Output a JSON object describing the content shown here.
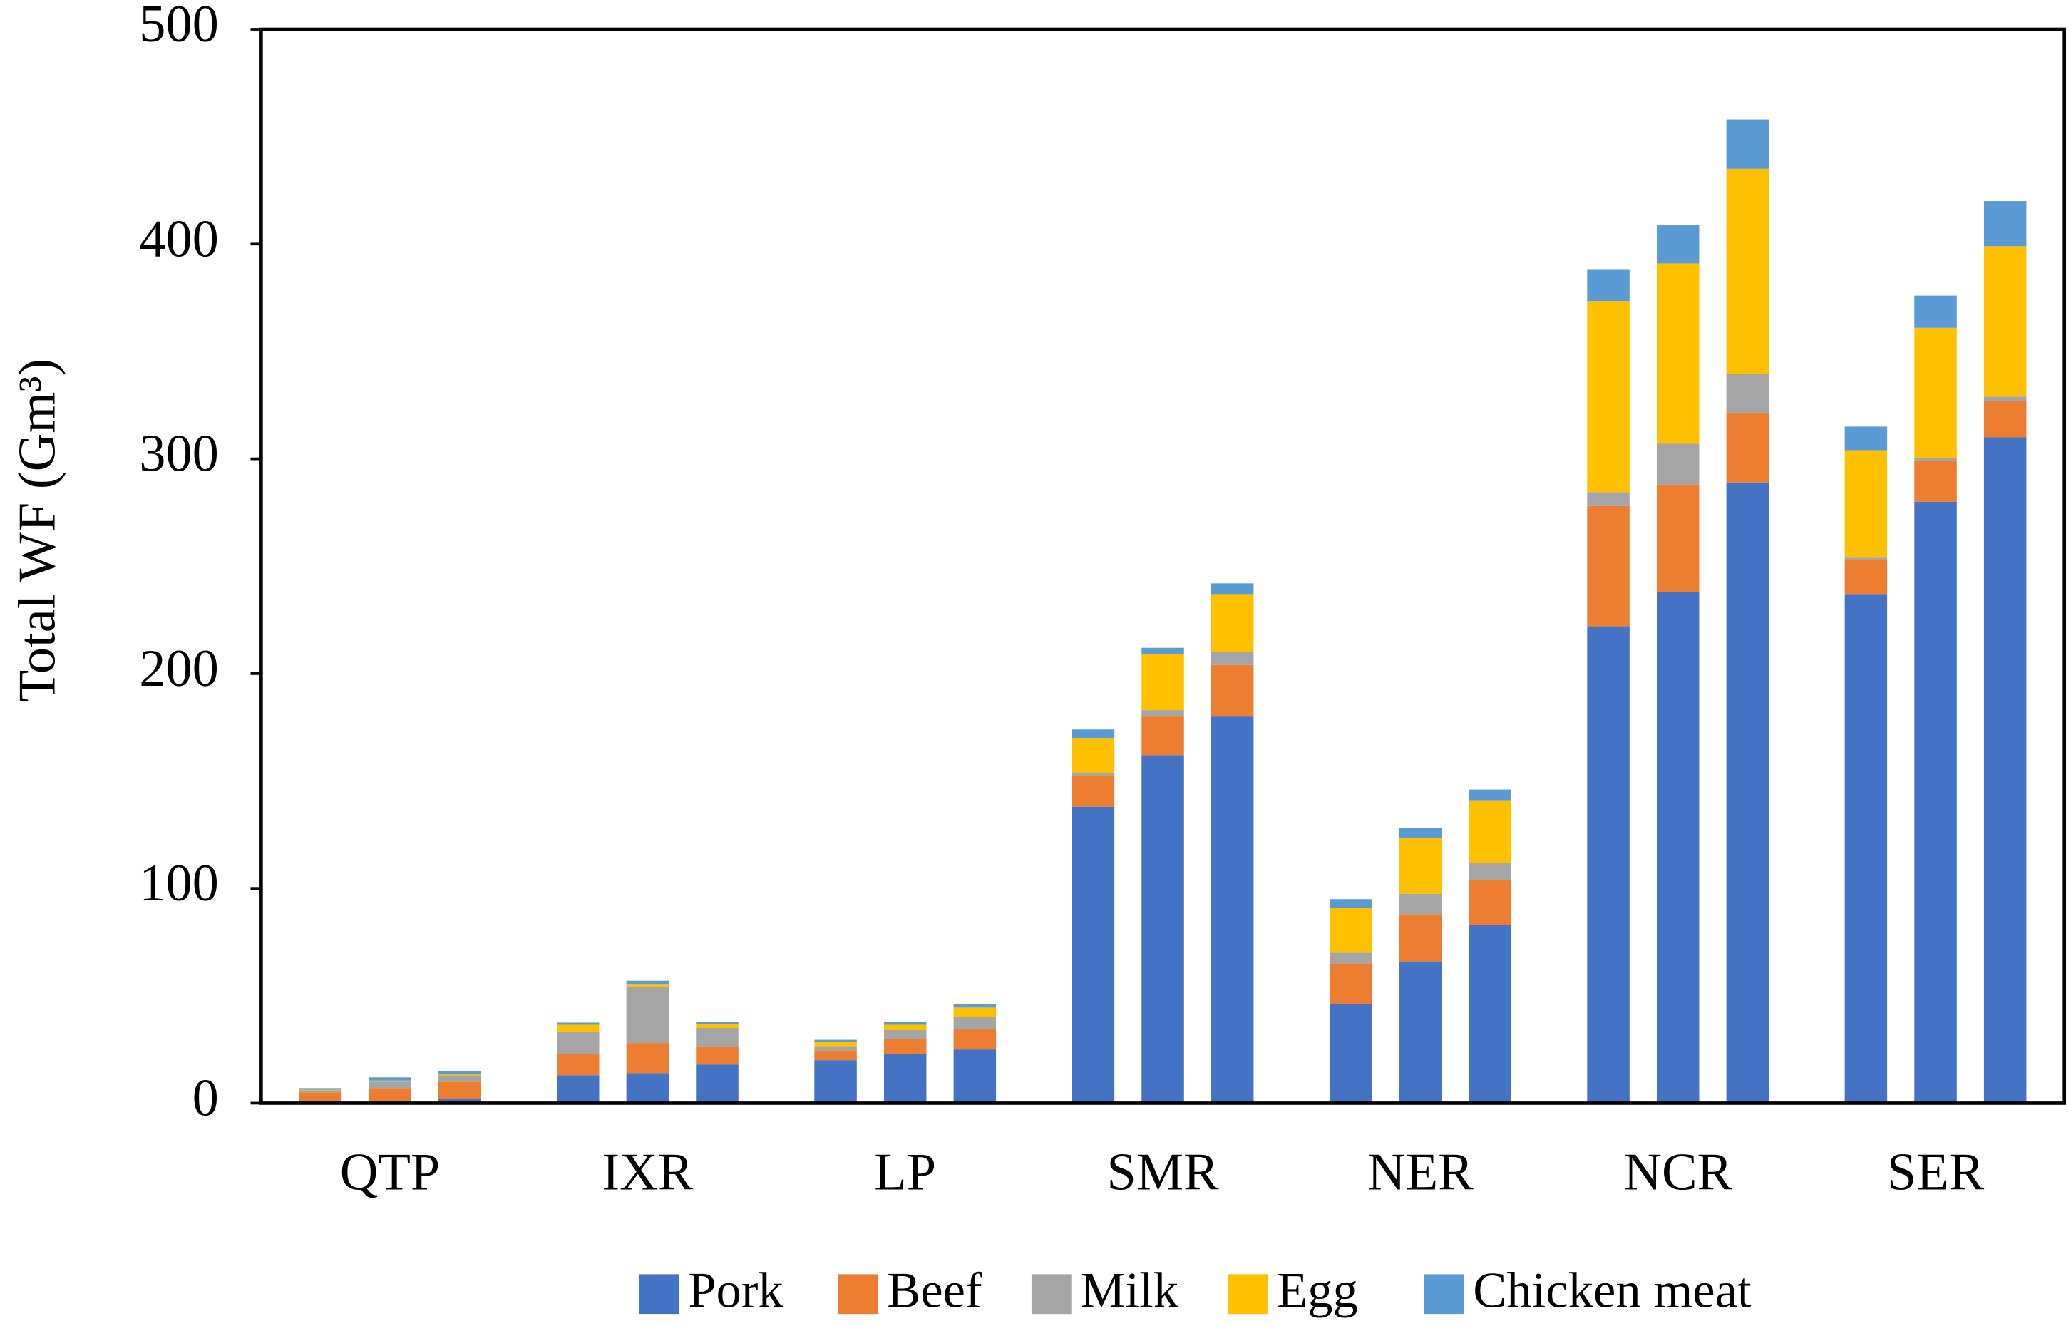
{
  "chart_data": {
    "type": "stacked_bar",
    "ylabel": "Total WF (Gm³)",
    "categories": [
      null,
      "QTP",
      null,
      null,
      "IXR",
      null,
      null,
      "LP",
      null,
      null,
      "SMR",
      null,
      null,
      "NER",
      null,
      null,
      "NCR",
      null,
      null,
      "SER",
      null
    ],
    "series": [
      {
        "name": "Pork",
        "color": "#4472c4",
        "values": [
          1,
          1,
          2,
          13,
          14,
          18,
          20,
          23,
          25,
          138,
          162,
          180,
          46,
          66,
          83,
          222,
          238,
          289,
          237,
          280,
          310
        ]
      },
      {
        "name": "Beef",
        "color": "#ed7d31",
        "values": [
          4,
          6,
          8,
          10,
          14,
          8.5,
          4.5,
          7,
          9.5,
          14.5,
          18,
          24,
          19,
          22,
          21,
          56,
          50,
          32.5,
          16,
          19,
          17
        ]
      },
      {
        "name": "Milk",
        "color": "#a5a5a5",
        "values": [
          1,
          3,
          3,
          10,
          26,
          8.5,
          2,
          4,
          5.5,
          1,
          3,
          6,
          5,
          9.5,
          8,
          6.5,
          19,
          18,
          1,
          1.5,
          2
        ]
      },
      {
        "name": "Egg",
        "color": "#ffc000",
        "values": [
          0.3,
          0.5,
          0.5,
          3.5,
          1.5,
          2,
          2,
          2.5,
          4.5,
          16.5,
          26,
          27,
          21,
          26,
          29,
          89,
          84,
          95.5,
          50,
          60.5,
          70
        ]
      },
      {
        "name": "Chicken meat",
        "color": "#5b9bd5",
        "values": [
          0.7,
          1.5,
          1.5,
          1,
          1.5,
          1,
          1,
          1.5,
          1.5,
          4,
          3,
          5,
          4,
          4.5,
          5,
          14.5,
          18,
          23,
          11,
          15,
          21
        ]
      }
    ],
    "ylim": [
      0,
      500
    ],
    "yticks": [
      0,
      100,
      200,
      300,
      400,
      500
    ],
    "grid": false,
    "legend": "bottom"
  }
}
